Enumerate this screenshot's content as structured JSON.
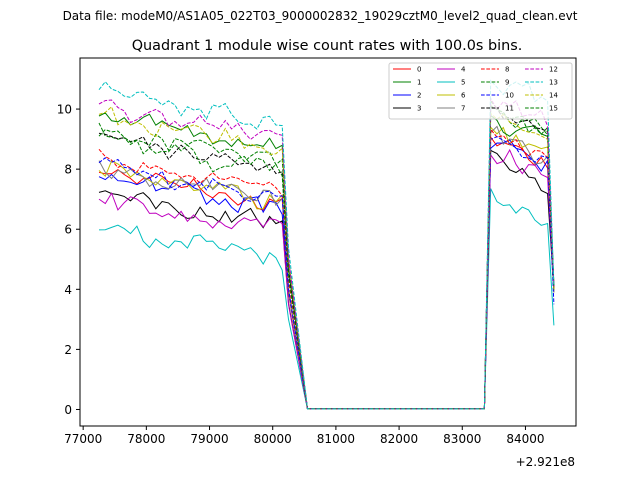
{
  "suptitle": "Data file: modeM0/AS1A05_022T03_9000002832_19029cztM0_level2_quad_clean.evt",
  "chart_data": {
    "type": "line",
    "title": "Quadrant 1 module wise count rates with 100.0s bins.",
    "xlabel": "",
    "ylabel": "",
    "x_offset_label": "+2.921e8",
    "xlim": [
      76950,
      84800
    ],
    "ylim": [
      -0.55,
      11.7
    ],
    "grid": false,
    "legend_position": "top-right",
    "legend_columns": 4,
    "x_ticks": [
      77000,
      78000,
      79000,
      80000,
      81000,
      82000,
      83000,
      84000
    ],
    "x_tick_labels": [
      "77000",
      "78000",
      "79000",
      "80000",
      "81000",
      "82000",
      "83000",
      "84000"
    ],
    "y_ticks": [
      0,
      2,
      4,
      6,
      8,
      10
    ],
    "y_tick_labels": [
      "0",
      "2",
      "4",
      "6",
      "8",
      "10"
    ],
    "segments": [
      {
        "start": 77250,
        "count": 31,
        "step": 100
      },
      {
        "start": 80550,
        "count": 28,
        "step": 100
      },
      {
        "start": 83350,
        "count": 12,
        "step": 100
      }
    ],
    "series": [
      {
        "name": "0",
        "color": "#ff0000",
        "dashed": false,
        "level": 7.1,
        "end": 4.0,
        "peak": 9.0
      },
      {
        "name": "1",
        "color": "#008000",
        "dashed": false,
        "level": 9.0,
        "end": 4.0,
        "peak": 9.7
      },
      {
        "name": "2",
        "color": "#0000ff",
        "dashed": false,
        "level": 7.0,
        "end": 3.9,
        "peak": 9.0
      },
      {
        "name": "3",
        "color": "#000000",
        "dashed": false,
        "level": 6.5,
        "end": 4.0,
        "peak": 8.4
      },
      {
        "name": "4",
        "color": "#bf00bf",
        "dashed": false,
        "level": 6.3,
        "end": 3.9,
        "peak": 8.6
      },
      {
        "name": "5",
        "color": "#00bfbf",
        "dashed": false,
        "level": 5.3,
        "end": 2.8,
        "peak": 7.2
      },
      {
        "name": "6",
        "color": "#bfbf00",
        "dashed": false,
        "level": 7.3,
        "end": 3.9,
        "peak": 9.4
      },
      {
        "name": "7",
        "color": "#808080",
        "dashed": false,
        "level": 7.3,
        "end": 3.9,
        "peak": 9.2
      },
      {
        "name": "8",
        "color": "#ff0000",
        "dashed": true,
        "level": 7.7,
        "end": 4.0,
        "peak": 9.4
      },
      {
        "name": "9",
        "color": "#008000",
        "dashed": true,
        "level": 8.6,
        "end": 4.1,
        "peak": 10.1
      },
      {
        "name": "10",
        "color": "#0000ff",
        "dashed": true,
        "level": 7.3,
        "end": 3.5,
        "peak": 9.2
      },
      {
        "name": "11",
        "color": "#000000",
        "dashed": true,
        "level": 8.3,
        "end": 4.0,
        "peak": 10.0
      },
      {
        "name": "12",
        "color": "#bf00bf",
        "dashed": true,
        "level": 9.3,
        "end": 4.1,
        "peak": 10.4
      },
      {
        "name": "13",
        "color": "#00bfbf",
        "dashed": true,
        "level": 9.8,
        "end": 4.1,
        "peak": 11.0
      },
      {
        "name": "14",
        "color": "#bfbf00",
        "dashed": true,
        "level": 9.0,
        "end": 4.0,
        "peak": 10.0
      },
      {
        "name": "15",
        "color": "#008000",
        "dashed": true,
        "level": 8.3,
        "end": 4.1,
        "peak": 10.1
      }
    ]
  }
}
